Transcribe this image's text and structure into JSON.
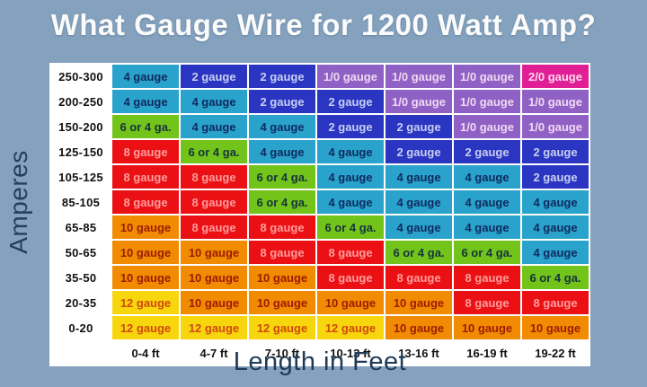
{
  "title": "What Gauge Wire for 1200 Watt Amp?",
  "colors": {
    "background": "#84A1BE",
    "title_text": "#FBFBFB",
    "axis_text": "#1E3A56",
    "grid_border": "#FFFFFF",
    "header_cell_bg": "#FFFFFF",
    "header_cell_text": "#111111"
  },
  "value_styles": {
    "12 gauge": {
      "bg": "#F8D60E",
      "fg": "#D1490B"
    },
    "10 gauge": {
      "bg": "#F18B02",
      "fg": "#9E1C00"
    },
    "8 gauge": {
      "bg": "#EB1013",
      "fg": "#FF9D9D"
    },
    "6 or 4 ga.": {
      "bg": "#72C31A",
      "fg": "#16333C"
    },
    "4 gauge": {
      "bg": "#2AA3CC",
      "fg": "#0E2A5E"
    },
    "2 gauge": {
      "bg": "#2A35C2",
      "fg": "#C9CFF2"
    },
    "1/0 gauge": {
      "bg": "#9061C4",
      "fg": "#EFD9F2"
    },
    "2/0 gauge": {
      "bg": "#E01F96",
      "fg": "#FFD7EC"
    }
  },
  "chart_data": {
    "type": "heatmap",
    "title": "What Gauge Wire for 1200 Watt Amp?",
    "xlabel": "Length in Feet",
    "ylabel": "Amperes",
    "x_categories": [
      "0-4 ft",
      "4-7 ft",
      "7-10 ft",
      "10-13 ft",
      "13-16 ft",
      "16-19 ft",
      "19-22 ft"
    ],
    "y_categories": [
      "250-300",
      "200-250",
      "150-200",
      "125-150",
      "105-125",
      "85-105",
      "65-85",
      "50-65",
      "35-50",
      "20-35",
      "0-20"
    ],
    "values": [
      [
        "4 gauge",
        "2 gauge",
        "2 gauge",
        "1/0 gauge",
        "1/0 gauge",
        "1/0 gauge",
        "2/0 gauge"
      ],
      [
        "4 gauge",
        "4 gauge",
        "2 gauge",
        "2 gauge",
        "1/0 gauge",
        "1/0 gauge",
        "1/0 gauge"
      ],
      [
        "6 or 4 ga.",
        "4 gauge",
        "4 gauge",
        "2 gauge",
        "2 gauge",
        "1/0 gauge",
        "1/0 gauge"
      ],
      [
        "8 gauge",
        "6 or 4 ga.",
        "4 gauge",
        "4 gauge",
        "2 gauge",
        "2 gauge",
        "2 gauge"
      ],
      [
        "8 gauge",
        "8 gauge",
        "6 or 4 ga.",
        "4 gauge",
        "4 gauge",
        "4 gauge",
        "2 gauge"
      ],
      [
        "8 gauge",
        "8 gauge",
        "6 or 4 ga.",
        "4 gauge",
        "4 gauge",
        "4 gauge",
        "4 gauge"
      ],
      [
        "10 gauge",
        "8 gauge",
        "8 gauge",
        "6 or 4 ga.",
        "4 gauge",
        "4 gauge",
        "4 gauge"
      ],
      [
        "10 gauge",
        "10 gauge",
        "8 gauge",
        "8 gauge",
        "6 or 4 ga.",
        "6 or 4 ga.",
        "4 gauge"
      ],
      [
        "10 gauge",
        "10 gauge",
        "10 gauge",
        "8 gauge",
        "8 gauge",
        "8 gauge",
        "6 or 4 ga."
      ],
      [
        "12 gauge",
        "10 gauge",
        "10 gauge",
        "10 gauge",
        "10 gauge",
        "8 gauge",
        "8 gauge"
      ],
      [
        "12 gauge",
        "12 gauge",
        "12 gauge",
        "12 gauge",
        "10 gauge",
        "10 gauge",
        "10 gauge"
      ]
    ]
  }
}
